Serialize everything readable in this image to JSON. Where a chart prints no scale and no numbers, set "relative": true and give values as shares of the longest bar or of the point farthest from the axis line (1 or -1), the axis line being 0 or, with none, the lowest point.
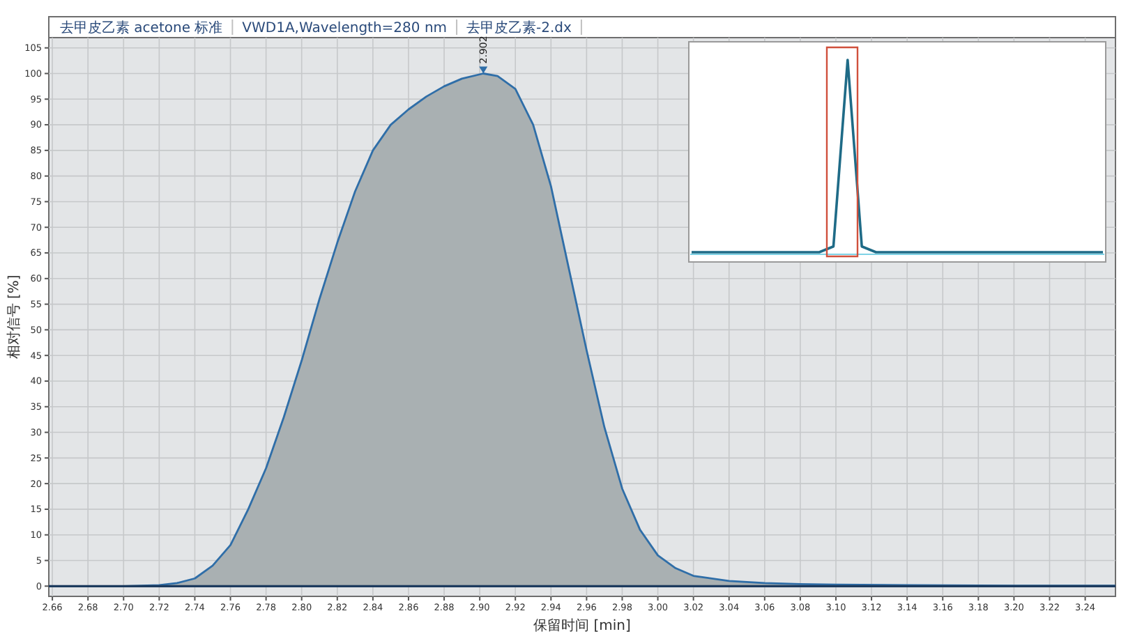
{
  "chart_data": [
    {
      "type": "area",
      "annotations": [
        "去甲皮乙素 acetone 标准",
        "VWD1A,Wavelength=280 nm",
        "去甲皮乙素-2.dx",
        {
          "text": "2.902",
          "x": 2.902,
          "y": 100
        }
      ],
      "xlabel": "保留时间 [min]",
      "ylabel": "相对信号 [%]",
      "x": [
        2.658,
        2.68,
        2.7,
        2.72,
        2.73,
        2.74,
        2.75,
        2.76,
        2.77,
        2.78,
        2.79,
        2.8,
        2.81,
        2.82,
        2.83,
        2.84,
        2.85,
        2.86,
        2.87,
        2.88,
        2.89,
        2.902,
        2.91,
        2.92,
        2.93,
        2.94,
        2.95,
        2.96,
        2.97,
        2.98,
        2.99,
        3.0,
        3.01,
        3.02,
        3.04,
        3.06,
        3.08,
        3.1,
        3.14,
        3.2,
        3.257
      ],
      "series": [
        {
          "color": "#a9b0b2",
          "values": [
            0,
            0,
            0,
            0.2,
            0.6,
            1.5,
            4,
            8,
            15,
            23,
            33,
            44,
            56,
            67,
            77,
            85,
            90,
            93,
            95.5,
            97.5,
            99,
            100,
            99.5,
            97,
            90,
            78,
            62,
            46,
            31,
            19,
            11,
            6,
            3.5,
            2,
            1,
            0.6,
            0.4,
            0.3,
            0.2,
            0.1,
            0.1
          ]
        }
      ],
      "xlim": [
        2.658,
        3.257
      ],
      "ylim": [
        -2,
        107
      ],
      "xticks": [
        2.66,
        2.68,
        {
          "value": 2.7,
          "label": "2.70"
        },
        2.72,
        2.74,
        2.76,
        2.78,
        {
          "value": 2.8,
          "label": "2.80"
        },
        2.82,
        2.84,
        2.86,
        2.88,
        {
          "value": 2.9,
          "label": "2.90"
        },
        2.92,
        2.94,
        2.96,
        2.98,
        {
          "value": 3.0,
          "label": "3.00"
        },
        3.02,
        3.04,
        3.06,
        3.08,
        {
          "value": 3.1,
          "label": "3.10"
        },
        3.12,
        3.14,
        3.16,
        3.18,
        {
          "value": 3.2,
          "label": "3.20"
        },
        3.22,
        3.24
      ],
      "yticks": [
        0,
        5,
        10,
        15,
        20,
        25,
        30,
        35,
        40,
        45,
        50,
        55,
        60,
        65,
        70,
        75,
        80,
        85,
        90,
        95,
        100,
        105
      ],
      "grid": true
    },
    {
      "type": "line",
      "relative": true,
      "categories": [
        null,
        null,
        null,
        null,
        null,
        null,
        null,
        null,
        null,
        null,
        null,
        null,
        null,
        null,
        null,
        null,
        null,
        null,
        null,
        null,
        null,
        null,
        null,
        null,
        null,
        null,
        null,
        null,
        null,
        null
      ],
      "series": [
        {
          "color": "#1f6b87",
          "values": [
            0,
            0,
            0,
            0,
            0,
            0,
            0,
            0,
            0,
            0,
            0.03,
            1,
            0.03,
            0,
            0,
            0,
            0,
            0,
            0,
            0,
            0,
            0,
            0,
            0,
            0,
            0,
            0,
            0,
            0,
            0
          ]
        }
      ]
    }
  ]
}
